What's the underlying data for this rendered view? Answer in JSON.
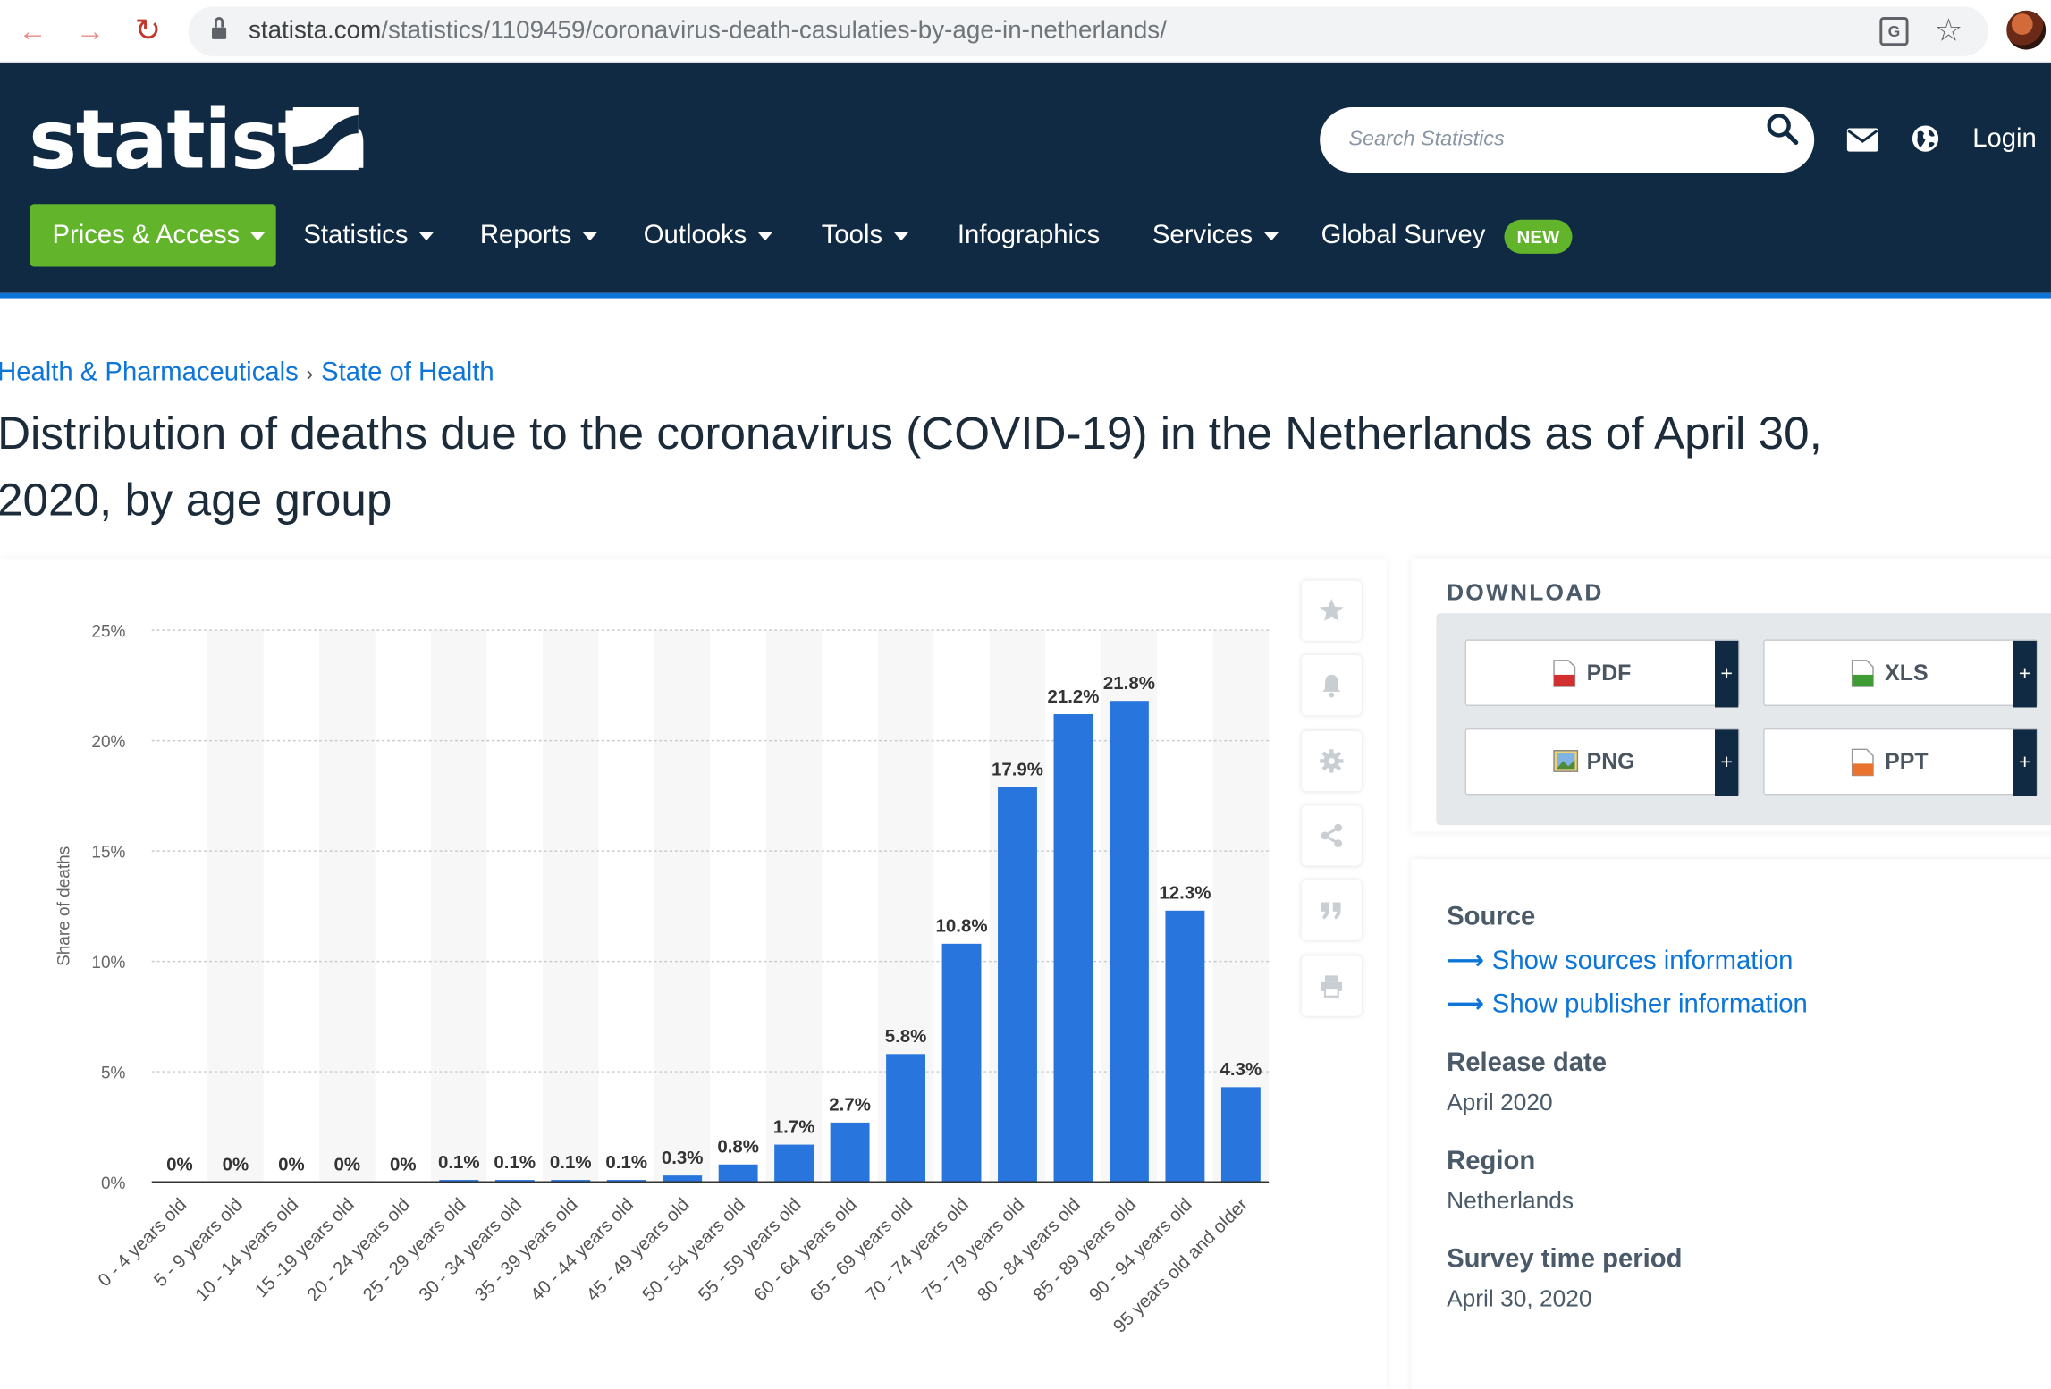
{
  "browser": {
    "url_host": "statista.com",
    "url_path": "/statistics/1109459/coronavirus-death-casulaties-by-age-in-netherlands/"
  },
  "header": {
    "logo": "statista",
    "search_placeholder": "Search Statistics",
    "login": "Login",
    "nav": [
      {
        "label": "Prices & Access"
      },
      {
        "label": "Statistics"
      },
      {
        "label": "Reports"
      },
      {
        "label": "Outlooks"
      },
      {
        "label": "Tools"
      },
      {
        "label": "Infographics"
      },
      {
        "label": "Services"
      },
      {
        "label": "Global Survey"
      }
    ],
    "new_badge": "NEW",
    "colors": {
      "header_bg": "#0f2a42",
      "accent_green": "#62b52a",
      "link_blue": "#0d75d8"
    }
  },
  "breadcrumb": [
    "Health & Pharmaceuticals",
    "State of Health"
  ],
  "page_title_line1": "Distribution of deaths due to the coronavirus (COVID-19) in the Netherlands as of April 30,",
  "page_title_line2": "2020, by age group",
  "chart_data": {
    "type": "bar",
    "title": "",
    "xlabel": "",
    "ylabel": "Share of deaths",
    "ylim": [
      0,
      25
    ],
    "yticks": [
      0,
      5,
      10,
      15,
      20,
      25
    ],
    "ytick_labels": [
      "0%",
      "5%",
      "10%",
      "15%",
      "20%",
      "25%"
    ],
    "grid": true,
    "bar_color": "#2876dd",
    "categories": [
      "0 - 4 years old",
      "5 - 9 years old",
      "10 - 14 years old",
      "15 -19 years old",
      "20 - 24 years old",
      "25 - 29 years old",
      "30 - 34 years old",
      "35 - 39 years old",
      "40 - 44 years old",
      "45 - 49 years old",
      "50 - 54 years old",
      "55 - 59 years old",
      "60 - 64 years old",
      "65 - 69 years old",
      "70 - 74 years old",
      "75 - 79 years old",
      "80 - 84 years old",
      "85 - 89 years old",
      "90 - 94 years old",
      "95 years old and older"
    ],
    "values": [
      0,
      0,
      0,
      0,
      0,
      0.1,
      0.1,
      0.1,
      0.1,
      0.3,
      0.8,
      1.7,
      2.7,
      5.8,
      10.8,
      17.9,
      21.2,
      21.8,
      12.3,
      4.3
    ],
    "value_labels": [
      "0%",
      "0%",
      "0%",
      "0%",
      "0%",
      "0.1%",
      "0.1%",
      "0.1%",
      "0.1%",
      "0.3%",
      "0.8%",
      "1.7%",
      "2.7%",
      "5.8%",
      "10.8%",
      "17.9%",
      "21.2%",
      "21.8%",
      "12.3%",
      "4.3%"
    ]
  },
  "tools": [
    "star-icon",
    "bell-icon",
    "gear-icon",
    "share-icon",
    "quote-icon",
    "print-icon"
  ],
  "download": {
    "title": "DOWNLOAD",
    "buttons": [
      {
        "label": "PDF",
        "plus": "+"
      },
      {
        "label": "XLS",
        "plus": "+"
      },
      {
        "label": "PNG",
        "plus": "+"
      },
      {
        "label": "PPT",
        "plus": "+"
      }
    ]
  },
  "meta": {
    "source_head": "Source",
    "source_link1": "Show sources information",
    "source_link2": "Show publisher information",
    "release_head": "Release date",
    "release_val": "April 2020",
    "region_head": "Region",
    "region_val": "Netherlands",
    "survey_head": "Survey time period",
    "survey_val": "April 30, 2020"
  }
}
